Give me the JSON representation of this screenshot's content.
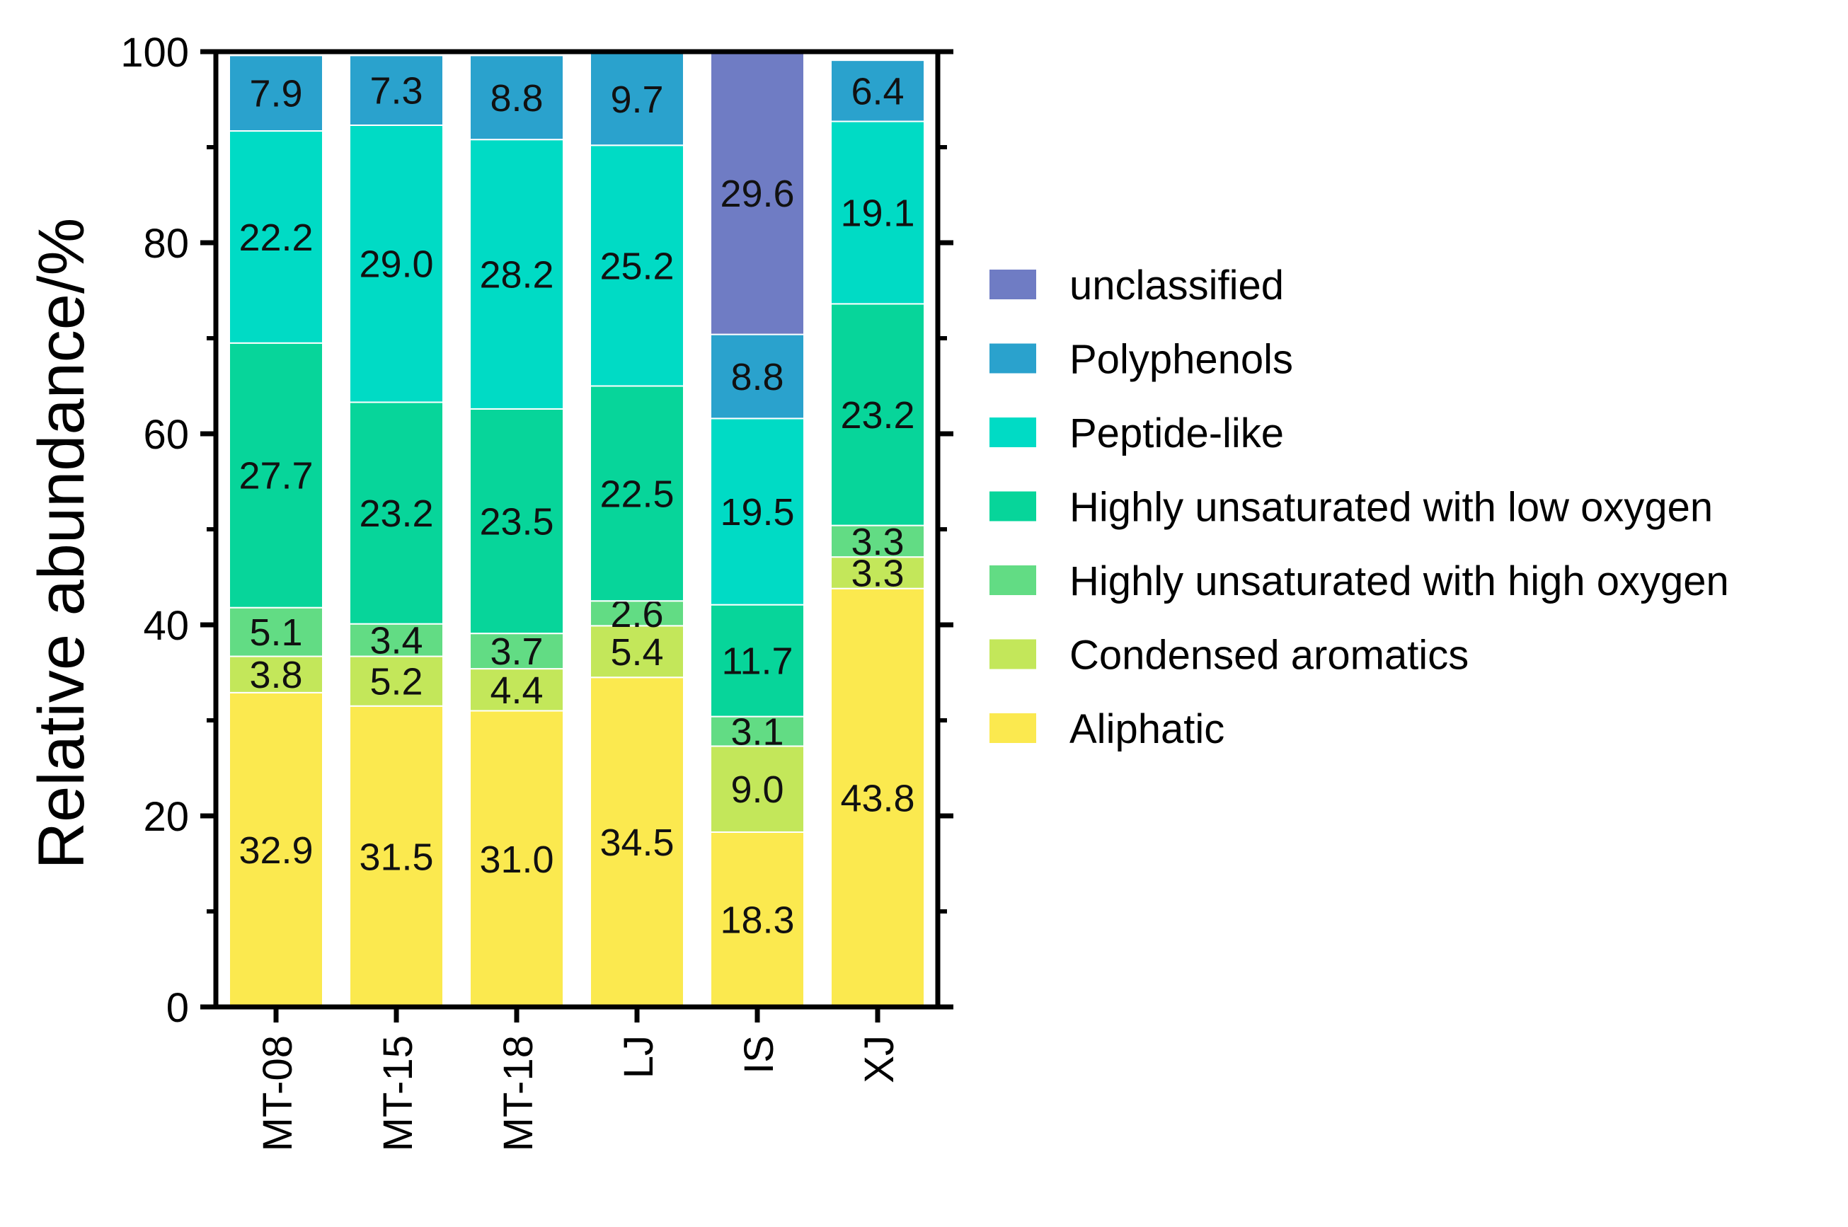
{
  "chart_data": {
    "type": "bar",
    "stacked": true,
    "title": "",
    "xlabel": "",
    "ylabel": "Relative abundance/%",
    "ylim": [
      0,
      100
    ],
    "yticks": [
      0,
      20,
      40,
      60,
      80,
      100
    ],
    "ytick_labels": [
      "0",
      "20",
      "40",
      "60",
      "80",
      "100"
    ],
    "categories": [
      "MT-08",
      "MT-15",
      "MT-18",
      "LJ",
      "IS",
      "XJ"
    ],
    "legend_position": "right",
    "series": [
      {
        "name": "Aliphatic",
        "color": "#fbe94f",
        "values": [
          32.9,
          31.5,
          31.0,
          34.5,
          18.3,
          43.8
        ],
        "labels": [
          "32.9",
          "31.5",
          "31.0",
          "34.5",
          "18.3",
          "43.8"
        ]
      },
      {
        "name": "Condensed aromatics",
        "color": "#c3e75a",
        "values": [
          3.8,
          5.2,
          4.4,
          5.4,
          9.0,
          3.3
        ],
        "labels": [
          "3.8",
          "5.2",
          "4.4",
          "5.4",
          "9.0",
          "3.3"
        ]
      },
      {
        "name": "Highly unsaturated with high oxygen",
        "color": "#62dc84",
        "values": [
          5.1,
          3.4,
          3.7,
          2.6,
          3.1,
          3.3
        ],
        "labels": [
          "5.1",
          "3.4",
          "3.7",
          "2.6",
          "3.1",
          "3.3"
        ]
      },
      {
        "name": "Highly unsaturated with low oxygen",
        "color": "#07d59a",
        "values": [
          27.7,
          23.2,
          23.5,
          22.5,
          11.7,
          23.2
        ],
        "labels": [
          "27.7",
          "23.2",
          "23.5",
          "22.5",
          "11.7",
          "23.2"
        ]
      },
      {
        "name": "Peptide-like",
        "color": "#00dbc5",
        "values": [
          22.2,
          29.0,
          28.2,
          25.2,
          19.5,
          19.1
        ],
        "labels": [
          "22.2",
          "29.0",
          "28.2",
          "25.2",
          "19.5",
          "19.1"
        ]
      },
      {
        "name": "Polyphenols",
        "color": "#2aa2cd",
        "values": [
          7.9,
          7.3,
          8.8,
          9.7,
          8.8,
          6.4
        ],
        "labels": [
          "7.9",
          "7.3",
          "8.8",
          "9.7",
          "8.8",
          "6.4"
        ]
      },
      {
        "name": "unclassified",
        "color": "#6f7cc4",
        "values": [
          0,
          0,
          0,
          0,
          29.6,
          0
        ],
        "labels": [
          "",
          "",
          "",
          "",
          "29.6",
          ""
        ]
      }
    ],
    "legend_order": [
      "unclassified",
      "Polyphenols",
      "Peptide-like",
      "Highly unsaturated with low oxygen",
      "Highly unsaturated with high oxygen",
      "Condensed aromatics",
      "Aliphatic"
    ]
  }
}
